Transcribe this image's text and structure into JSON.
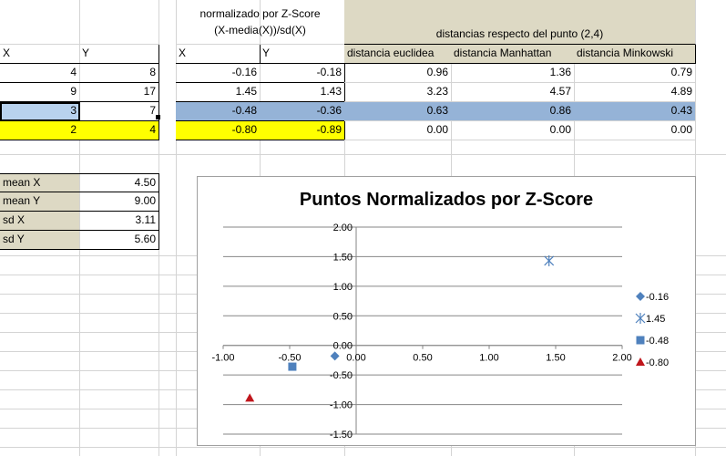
{
  "sheet": {
    "zscore_title_line1": "normalizado por Z-Score",
    "zscore_title_line2": "(X-media(X))/sd(X)",
    "distances_title": "distancias respecto del punto (2,4)",
    "col_x": "X",
    "col_y": "Y",
    "col_euclid": "distancia euclidea",
    "col_manhattan": "distancia Manhattan",
    "col_minkowski": "distancia Minkowski",
    "rows": [
      {
        "x": "4",
        "y": "8",
        "zx": "-0.16",
        "zy": "-0.18",
        "de": "0.96",
        "dm": "1.36",
        "dk": "0.79"
      },
      {
        "x": "9",
        "y": "17",
        "zx": "1.45",
        "zy": "1.43",
        "de": "3.23",
        "dm": "4.57",
        "dk": "4.89"
      },
      {
        "x": "3",
        "y": "7",
        "zx": "-0.48",
        "zy": "-0.36",
        "de": "0.63",
        "dm": "0.86",
        "dk": "0.43"
      },
      {
        "x": "2",
        "y": "4",
        "zx": "-0.80",
        "zy": "-0.89",
        "de": "0.00",
        "dm": "0.00",
        "dk": "0.00"
      }
    ],
    "stats": [
      {
        "label": "mean X",
        "value": "4.50"
      },
      {
        "label": "mean Y",
        "value": "9.00"
      },
      {
        "label": "sd X",
        "value": "3.11"
      },
      {
        "label": "sd Y",
        "value": "5.60"
      }
    ]
  },
  "chart_data": {
    "type": "scatter",
    "title": "Puntos Normalizados por Z-Score",
    "xlim": [
      -1.0,
      2.0
    ],
    "ylim": [
      -1.5,
      2.0
    ],
    "x_ticks": [
      "-1.00",
      "-0.50",
      "0.00",
      "0.50",
      "1.00",
      "1.50",
      "2.00"
    ],
    "y_ticks": [
      "2.00",
      "1.50",
      "1.00",
      "0.50",
      "0.00",
      "-0.50",
      "-1.00",
      "-1.50"
    ],
    "legend_position": "right",
    "series": [
      {
        "name": "-0.16",
        "x": -0.16,
        "y": -0.18,
        "marker": "diamond",
        "color": "#4f81bd"
      },
      {
        "name": "1.45",
        "x": 1.45,
        "y": 1.43,
        "marker": "star",
        "color": "#4f81bd"
      },
      {
        "name": "-0.48",
        "x": -0.48,
        "y": -0.36,
        "marker": "square",
        "color": "#4f81bd"
      },
      {
        "name": "-0.80",
        "x": -0.8,
        "y": -0.89,
        "marker": "triangle",
        "color": "#c0161c"
      }
    ]
  }
}
